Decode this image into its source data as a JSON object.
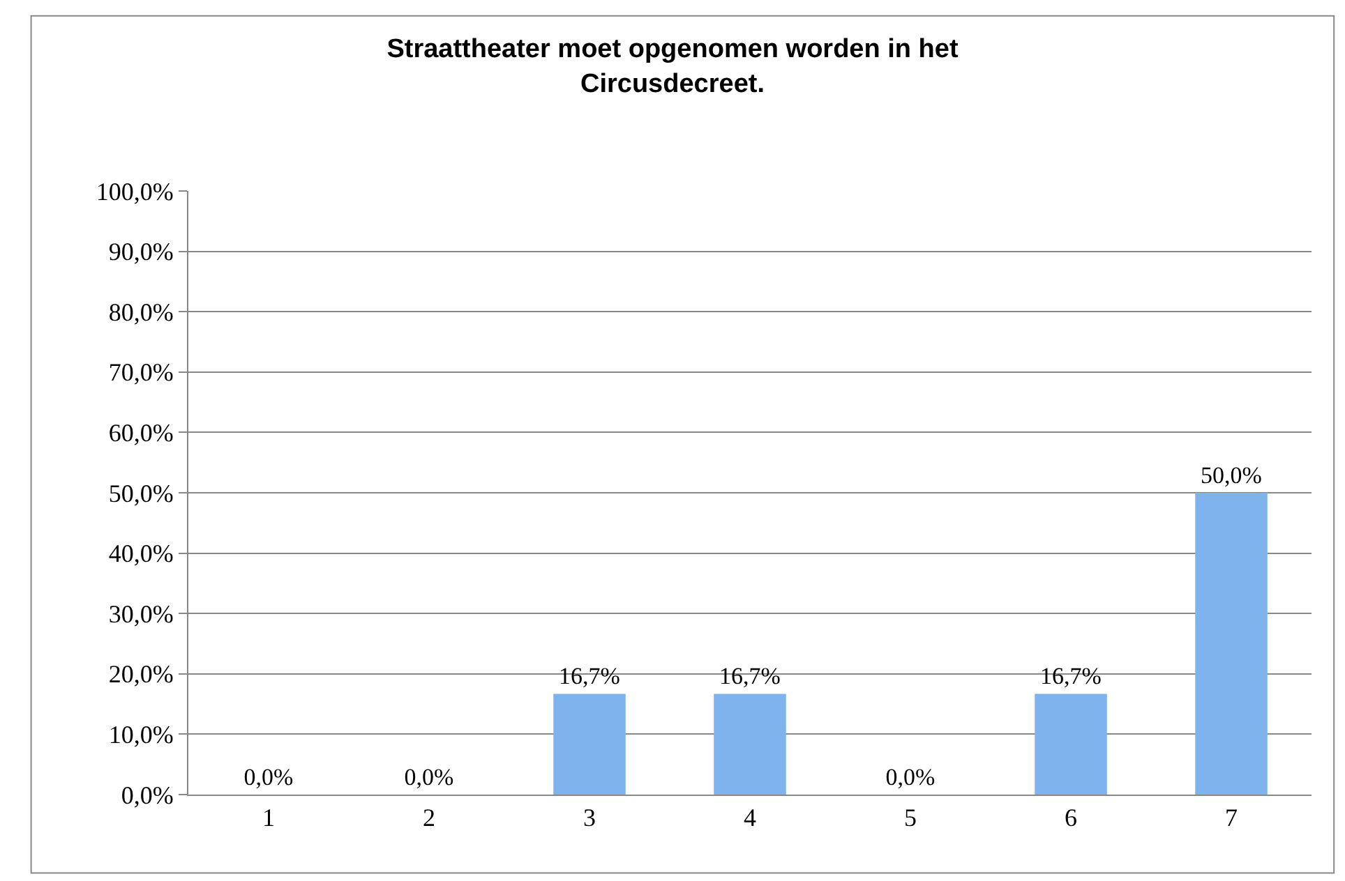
{
  "chart_data": {
    "type": "bar",
    "title": "Straattheater moet opgenomen worden in het\nCircusdecreet.",
    "categories": [
      "1",
      "2",
      "3",
      "4",
      "5",
      "6",
      "7"
    ],
    "values": [
      0,
      0,
      16.7,
      16.7,
      0,
      16.7,
      50
    ],
    "value_labels": [
      "0,0%",
      "0,0%",
      "16,7%",
      "16,7%",
      "0,0%",
      "16,7%",
      "50,0%"
    ],
    "color": "#7fb3ee",
    "ylim": [
      0,
      100
    ],
    "yticks": [
      {
        "value": 0,
        "label": "0,0%"
      },
      {
        "value": 10,
        "label": "10,0%"
      },
      {
        "value": 20,
        "label": "20,0%"
      },
      {
        "value": 30,
        "label": "30,0%"
      },
      {
        "value": 40,
        "label": "40,0%"
      },
      {
        "value": 50,
        "label": "50,0%"
      },
      {
        "value": 60,
        "label": "60,0%"
      },
      {
        "value": 70,
        "label": "70,0%"
      },
      {
        "value": 80,
        "label": "80,0%"
      },
      {
        "value": 90,
        "label": "90,0%"
      },
      {
        "value": 100,
        "label": "100,0%"
      }
    ],
    "grid": "y"
  }
}
